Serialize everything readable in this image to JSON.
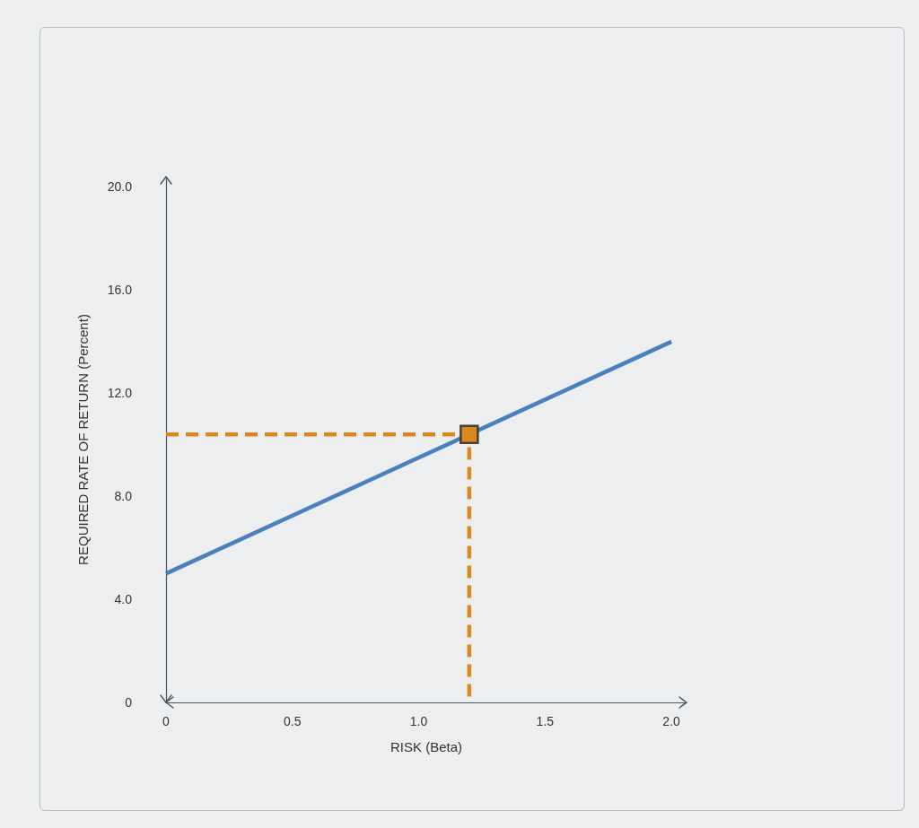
{
  "chart_data": {
    "type": "line",
    "xlabel": "RISK (Beta)",
    "ylabel": "REQUIRED RATE OF RETURN (Percent)",
    "xlim": [
      0,
      2.06
    ],
    "xticks": [
      0,
      0.5,
      {
        "value": 1,
        "label": "1.0"
      },
      1.5,
      {
        "value": 2,
        "label": "2.0"
      }
    ],
    "ylim": [
      0,
      20.4
    ],
    "yticks": [
      0,
      {
        "value": 4,
        "label": "4.0"
      },
      {
        "value": 8,
        "label": "8.0"
      },
      {
        "value": 12,
        "label": "12.0"
      },
      {
        "value": 16,
        "label": "16.0"
      },
      {
        "value": 20,
        "label": "20.0"
      }
    ],
    "marker": "none",
    "series": [
      {
        "color": "#4a80bd",
        "x": [
          0,
          2
        ],
        "values": [
          5,
          14
        ]
      },
      {
        "color": "#d98a1e",
        "x": [
          0,
          1.2,
          1.2
        ],
        "values": [
          10.4,
          10.4,
          0
        ],
        "line_style": "dashed"
      },
      {
        "type": "scatter",
        "color": "#d98a1e",
        "x": [
          1.2
        ],
        "values": [
          10.4
        ],
        "marker": "square"
      }
    ]
  }
}
